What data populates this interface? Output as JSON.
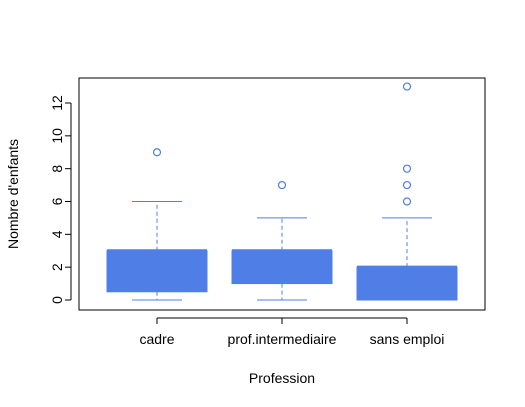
{
  "chart_data": {
    "type": "boxplot",
    "title": "",
    "xlabel": "Profession",
    "ylabel": "Nombre d'enfants",
    "ylim": [
      -0.5,
      13.5
    ],
    "yticks": [
      0,
      2,
      4,
      6,
      8,
      10,
      12
    ],
    "categories": [
      "cadre",
      "prof.intermediaire",
      "sans emploi"
    ],
    "boxes": [
      {
        "category": "cadre",
        "whisker_low": 0,
        "q1": 0.5,
        "median": 3,
        "q3": 3,
        "whisker_high": 6,
        "outliers": [
          9
        ]
      },
      {
        "category": "prof.intermediaire",
        "whisker_low": 0,
        "q1": 1,
        "median": 3,
        "q3": 3,
        "whisker_high": 5,
        "outliers": [
          7
        ]
      },
      {
        "category": "sans emploi",
        "whisker_low": 0,
        "q1": 0,
        "median": 2,
        "q3": 2,
        "whisker_high": 5,
        "outliers": [
          6,
          7,
          8,
          13
        ]
      }
    ],
    "grid": false,
    "legend": "none",
    "colors": {
      "box_fill": "#4f7fe6",
      "whisker": "#4f7fe6",
      "axis": "#000000"
    }
  }
}
